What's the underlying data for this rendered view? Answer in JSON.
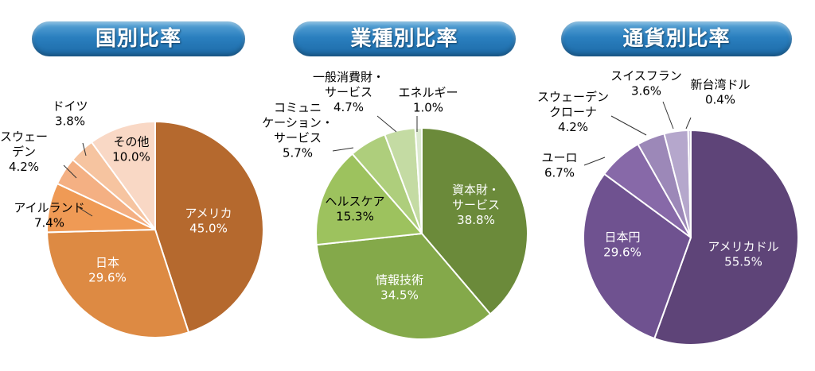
{
  "chart_data": [
    {
      "type": "pie",
      "title": "国別比率",
      "slices": [
        {
          "name": "アメリカ",
          "value": 45.0,
          "label": "45.0%",
          "color": "#b5692e",
          "text_color": "#ffffff"
        },
        {
          "name": "日本",
          "value": 29.6,
          "label": "29.6%",
          "color": "#dd8a43",
          "text_color": "#ffffff"
        },
        {
          "name": "アイルランド",
          "value": 7.4,
          "label": "7.4%",
          "color": "#ef9a55",
          "text_color": "#000000"
        },
        {
          "name": "スウェーデン",
          "value": 4.2,
          "label": "4.2%",
          "color": "#f4b083",
          "text_color": "#000000"
        },
        {
          "name": "ドイツ",
          "value": 3.8,
          "label": "3.8%",
          "color": "#f6c4a0",
          "text_color": "#000000"
        },
        {
          "name": "その他",
          "value": 10.0,
          "label": "10.0%",
          "color": "#f9d8c5",
          "text_color": "#000000"
        }
      ]
    },
    {
      "type": "pie",
      "title": "業種別比率",
      "slices": [
        {
          "name": "資本財・サービス",
          "value": 38.8,
          "label": "38.8%",
          "color": "#6b8a3a",
          "text_color": "#ffffff"
        },
        {
          "name": "情報技術",
          "value": 34.5,
          "label": "34.5%",
          "color": "#84a94a",
          "text_color": "#ffffff"
        },
        {
          "name": "ヘルスケア",
          "value": 15.3,
          "label": "15.3%",
          "color": "#9dc25e",
          "text_color": "#000000"
        },
        {
          "name": "コミュニケーション・サービス",
          "value": 5.7,
          "label": "5.7%",
          "color": "#aece7c",
          "text_color": "#000000"
        },
        {
          "name": "一般消費財・サービス",
          "value": 4.7,
          "label": "4.7%",
          "color": "#c4dba3",
          "text_color": "#000000"
        },
        {
          "name": "エネルギー",
          "value": 1.0,
          "label": "1.0%",
          "color": "#dcead0",
          "text_color": "#000000"
        }
      ]
    },
    {
      "type": "pie",
      "title": "通貨別比率",
      "slices": [
        {
          "name": "アメリカドル",
          "value": 55.5,
          "label": "55.5%",
          "color": "#5e4478",
          "text_color": "#ffffff"
        },
        {
          "name": "日本円",
          "value": 29.6,
          "label": "29.6%",
          "color": "#6f5290",
          "text_color": "#ffffff"
        },
        {
          "name": "ユーロ",
          "value": 6.7,
          "label": "6.7%",
          "color": "#8769a8",
          "text_color": "#000000"
        },
        {
          "name": "スウェーデンクローナ",
          "value": 4.2,
          "label": "4.2%",
          "color": "#9c88b8",
          "text_color": "#000000"
        },
        {
          "name": "スイスフラン",
          "value": 3.6,
          "label": "3.6%",
          "color": "#b5a7cc",
          "text_color": "#000000"
        },
        {
          "name": "新台湾ドル",
          "value": 0.4,
          "label": "0.4%",
          "color": "#cfc7dd",
          "text_color": "#000000"
        }
      ]
    }
  ]
}
